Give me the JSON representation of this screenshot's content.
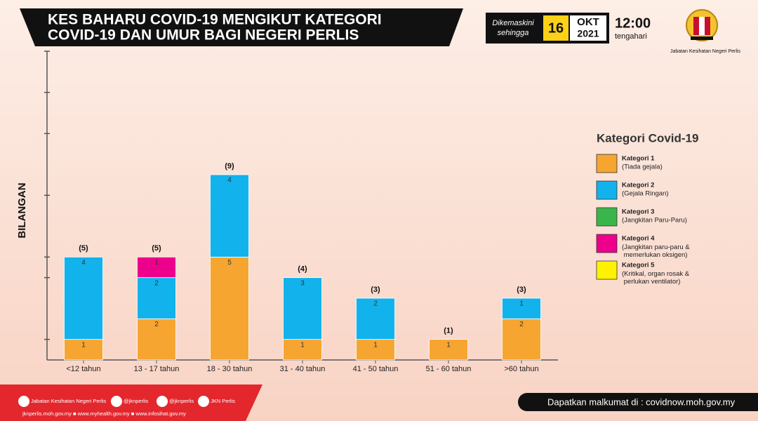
{
  "header": {
    "title_lines": [
      "KES BAHARU COVID-19 MENGIKUT KATEGORI",
      "COVID-19 DAN UMUR BAGI NEGERI PERLIS"
    ],
    "updated_label": [
      "Dikemaskini",
      "sehingga"
    ],
    "day": "16",
    "month": "OKT",
    "year": "2021",
    "time": "12:00",
    "time_note": "tengahari",
    "department": "Jabatan Kesihatan Negeri Perlis"
  },
  "chart_data": {
    "type": "stacked_bar",
    "y_label": "BILANGAN",
    "legend_title": "Kategori Covid-19",
    "categories": [
      "<12 tahun",
      "13 - 17 tahun",
      "18 - 30 tahun",
      "31 - 40 tahun",
      "41 - 50 tahun",
      "51 - 60 tahun",
      ">60 tahun"
    ],
    "series": [
      {
        "name": "Kategori 1",
        "description": "(Tiada gejala)",
        "color": "#f6a531",
        "values": [
          1,
          2,
          5,
          1,
          1,
          1,
          2
        ]
      },
      {
        "name": "Kategori 2",
        "description": "(Gejala Ringan)",
        "color": "#12b2ec",
        "values": [
          4,
          2,
          4,
          3,
          2,
          null,
          1
        ]
      },
      {
        "name": "Kategori 3",
        "description": "(Jangkitan Paru-Paru)",
        "color": "#3ab54a",
        "values": [
          null,
          null,
          null,
          null,
          null,
          null,
          null
        ]
      },
      {
        "name": "Kategori 4",
        "description": "(Jangkitan paru-paru & memerlukan oksigen)",
        "color": "#ec008c",
        "values": [
          null,
          1,
          null,
          null,
          null,
          null,
          null
        ]
      },
      {
        "name": "Kategori 5",
        "description": "(Kritikal, organ rosak & perlukan ventilator)",
        "color": "#fff200",
        "values": [
          null,
          null,
          null,
          null,
          null,
          null,
          null
        ]
      }
    ],
    "totals": [
      5,
      5,
      9,
      4,
      3,
      1,
      3
    ],
    "total_labels": [
      "(5)",
      "(5)",
      "(9)",
      "(4)",
      "(3)",
      "(1)",
      "(3)"
    ],
    "ylim": [
      0,
      15
    ],
    "yticks": [
      1,
      4,
      5,
      8,
      11,
      13,
      15
    ]
  },
  "footer": {
    "social": [
      "Jabatan Kesihatan Negeri Perlis",
      "@jknperlis",
      "@jknperlis",
      "JKN Perlis"
    ],
    "links": "jknperlis.moh.gov.my ■ www.myhealth.gov.my ■ www.infosihat.gov.my",
    "source": "Dapatkan malkumat di : covidnow.moh.gov.my"
  }
}
